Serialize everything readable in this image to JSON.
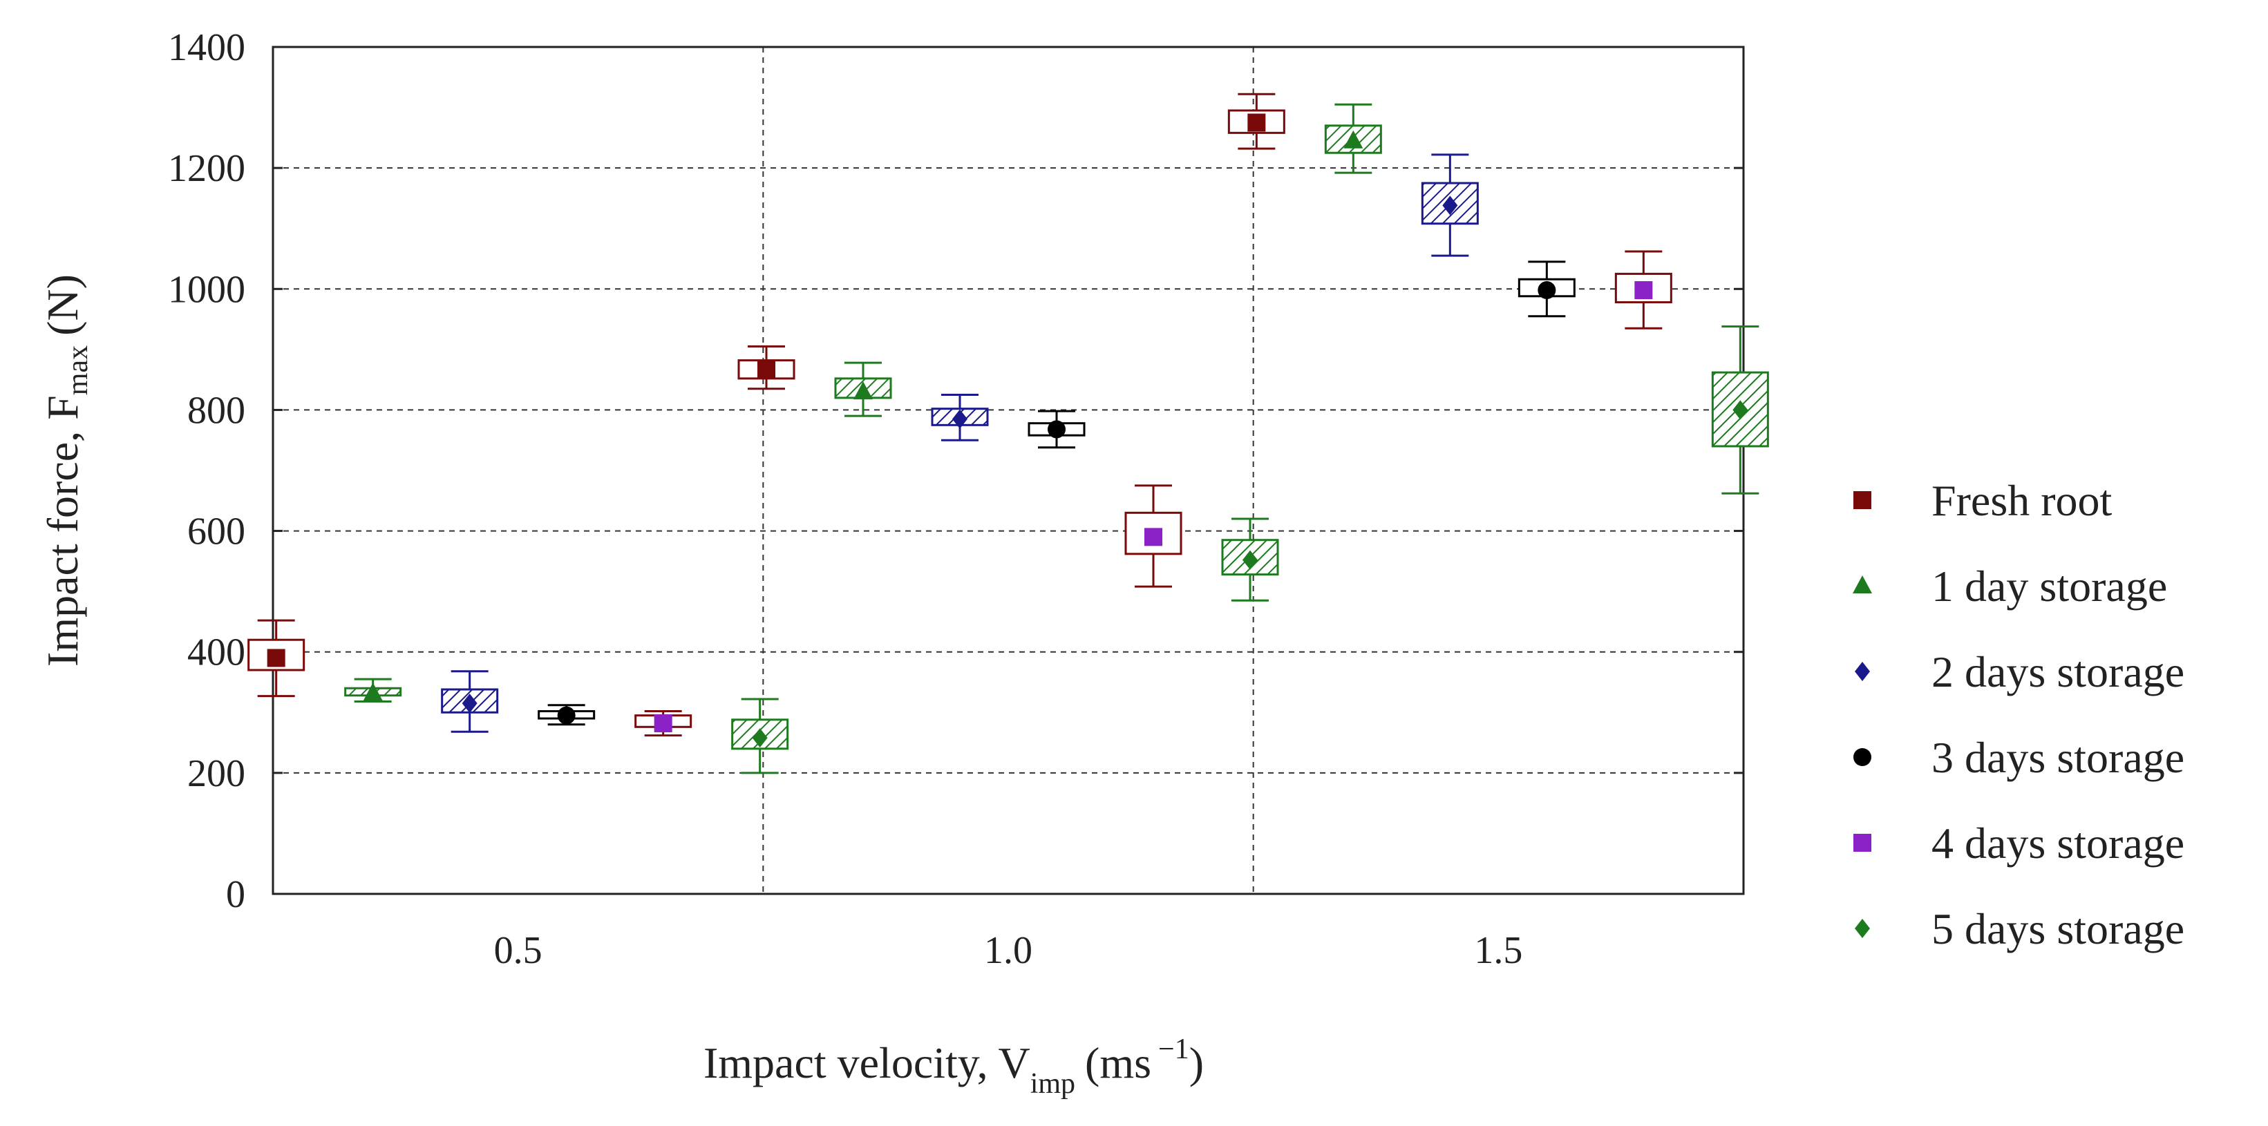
{
  "chart_data": {
    "type": "boxplot",
    "xlabel": "Impact velocity, V",
    "xlabel_sub": "imp",
    "xlabel_unit": "(ms",
    "xlabel_sup": "−1",
    "xlabel_close": ")",
    "ylabel": "Impact force, F",
    "ylabel_sub": "max",
    "ylabel_unit": "(N)",
    "ylim": [
      0,
      1400
    ],
    "yticks": [
      0,
      200,
      400,
      600,
      800,
      1000,
      1200,
      1400
    ],
    "ytick_labels": [
      "0",
      "200",
      "400",
      "600",
      "800",
      "1000",
      "1200",
      "1400"
    ],
    "categories": [
      "0.5",
      "1.0",
      "1.5"
    ],
    "grid": true,
    "legend_position": "right",
    "series": [
      {
        "name": "Fresh root",
        "color": "#7a0a0a",
        "marker": "square",
        "box_fill": "none",
        "points": [
          {
            "mean": 390,
            "q1": 370,
            "q3": 420,
            "min": 327,
            "max": 452
          },
          {
            "mean": 868,
            "q1": 852,
            "q3": 882,
            "min": 835,
            "max": 905
          },
          {
            "mean": 1275,
            "q1": 1258,
            "q3": 1295,
            "min": 1232,
            "max": 1322
          }
        ]
      },
      {
        "name": "1 day storage",
        "color": "#1e7a1e",
        "marker": "triangle",
        "box_fill": "hatch",
        "points": [
          {
            "mean": 332,
            "q1": 328,
            "q3": 340,
            "min": 318,
            "max": 355
          },
          {
            "mean": 830,
            "q1": 820,
            "q3": 852,
            "min": 790,
            "max": 878
          },
          {
            "mean": 1245,
            "q1": 1225,
            "q3": 1270,
            "min": 1192,
            "max": 1305
          }
        ]
      },
      {
        "name": "2 days storage",
        "color": "#1a1a8c",
        "marker": "diamond",
        "box_fill": "hatch",
        "points": [
          {
            "mean": 315,
            "q1": 300,
            "q3": 338,
            "min": 268,
            "max": 368
          },
          {
            "mean": 785,
            "q1": 775,
            "q3": 802,
            "min": 750,
            "max": 825
          },
          {
            "mean": 1138,
            "q1": 1108,
            "q3": 1175,
            "min": 1055,
            "max": 1222
          }
        ]
      },
      {
        "name": "3 days storage",
        "color": "#000000",
        "marker": "circle",
        "box_fill": "none",
        "points": [
          {
            "mean": 295,
            "q1": 290,
            "q3": 302,
            "min": 280,
            "max": 312
          },
          {
            "mean": 768,
            "q1": 758,
            "q3": 778,
            "min": 738,
            "max": 798
          },
          {
            "mean": 998,
            "q1": 988,
            "q3": 1016,
            "min": 955,
            "max": 1045
          }
        ]
      },
      {
        "name": "4 days storage",
        "color": "#7a0a0a",
        "marker": "square",
        "marker_color": "#8a22c8",
        "box_fill": "none",
        "points": [
          {
            "mean": 282,
            "q1": 276,
            "q3": 295,
            "min": 262,
            "max": 302
          },
          {
            "mean": 590,
            "q1": 562,
            "q3": 630,
            "min": 508,
            "max": 675
          },
          {
            "mean": 998,
            "q1": 978,
            "q3": 1025,
            "min": 935,
            "max": 1062
          }
        ]
      },
      {
        "name": "5 days storage",
        "color": "#1e7a1e",
        "marker": "diamond",
        "box_fill": "hatch",
        "points": [
          {
            "mean": 258,
            "q1": 240,
            "q3": 288,
            "min": 200,
            "max": 322
          },
          {
            "mean": 552,
            "q1": 528,
            "q3": 585,
            "min": 485,
            "max": 620
          },
          {
            "mean": 800,
            "q1": 740,
            "q3": 862,
            "min": 662,
            "max": 938
          }
        ]
      }
    ]
  }
}
